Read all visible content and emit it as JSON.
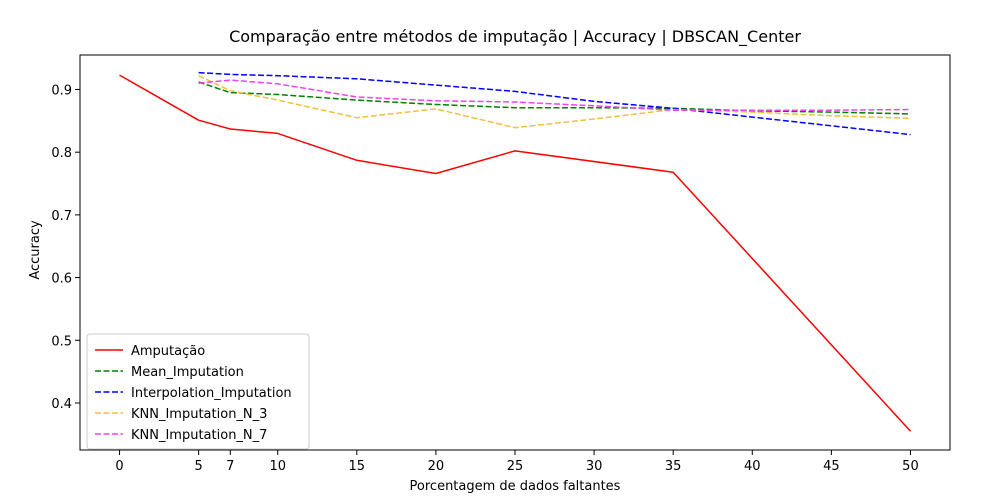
{
  "chart_data": {
    "type": "line",
    "title": "Comparação entre métodos de imputação | Accuracy | DBSCAN_Center",
    "xlabel": "Porcentagem de dados faltantes",
    "ylabel": "Accuracy",
    "xlim": [
      -2.5,
      52.5
    ],
    "ylim": [
      0.325,
      0.955
    ],
    "xticks": [
      0,
      5,
      7,
      10,
      15,
      20,
      25,
      30,
      35,
      40,
      45,
      50
    ],
    "yticks": [
      0.4,
      0.5,
      0.6,
      0.7,
      0.8,
      0.9
    ],
    "grid": false,
    "legend_position": "lower-left",
    "series": [
      {
        "name": "Amputação",
        "color": "#ff0000",
        "style": "solid",
        "x": [
          0,
          5,
          7,
          10,
          15,
          20,
          25,
          35,
          50
        ],
        "y": [
          0.923,
          0.851,
          0.837,
          0.83,
          0.787,
          0.766,
          0.802,
          0.768,
          0.355
        ]
      },
      {
        "name": "Mean_Imputation",
        "color": "#008000",
        "style": "dashed",
        "x": [
          5,
          7,
          10,
          15,
          20,
          25,
          30,
          35,
          40,
          45,
          50
        ],
        "y": [
          0.912,
          0.895,
          0.892,
          0.883,
          0.876,
          0.871,
          0.871,
          0.87,
          0.866,
          0.864,
          0.861
        ]
      },
      {
        "name": "Interpolation_Imputation",
        "color": "#0000ff",
        "style": "dashed",
        "x": [
          5,
          7,
          10,
          15,
          20,
          25,
          30,
          35,
          40,
          45,
          50
        ],
        "y": [
          0.927,
          0.924,
          0.922,
          0.917,
          0.907,
          0.897,
          0.881,
          0.87,
          0.856,
          0.842,
          0.828
        ]
      },
      {
        "name": "KNN_Imputation_N_3",
        "color": "#f0c040",
        "style": "dashed",
        "x": [
          5,
          7,
          10,
          15,
          20,
          25,
          30,
          35,
          40,
          45,
          50
        ],
        "y": [
          0.922,
          0.898,
          0.883,
          0.855,
          0.869,
          0.839,
          0.853,
          0.868,
          0.864,
          0.858,
          0.854
        ]
      },
      {
        "name": "KNN_Imputation_N_7",
        "color": "#ee44ee",
        "style": "dashed",
        "x": [
          5,
          7,
          10,
          15,
          20,
          25,
          30,
          35,
          40,
          45,
          50
        ],
        "y": [
          0.91,
          0.915,
          0.909,
          0.888,
          0.882,
          0.88,
          0.874,
          0.867,
          0.867,
          0.867,
          0.868
        ]
      }
    ]
  }
}
